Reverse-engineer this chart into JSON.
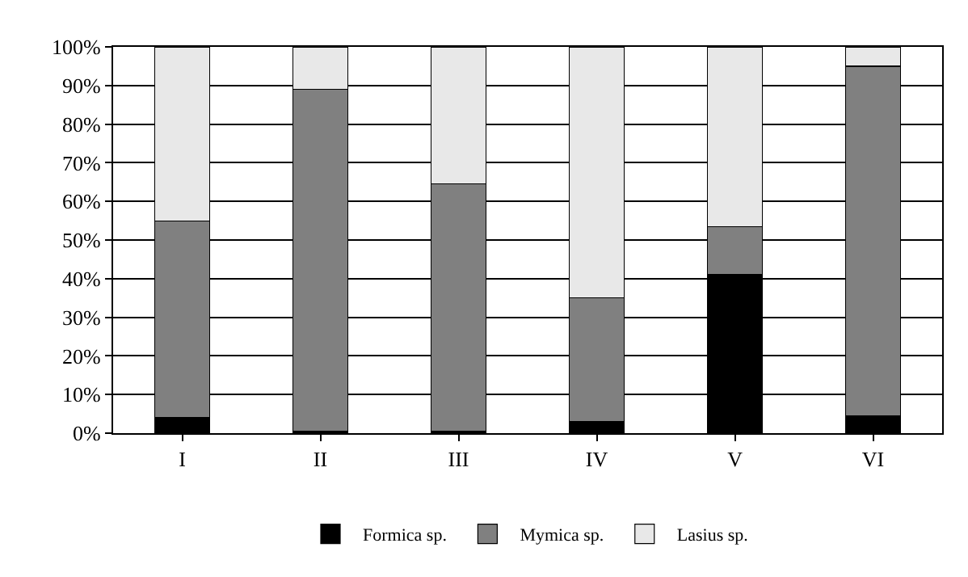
{
  "chart_data": {
    "type": "bar",
    "stacked": true,
    "categories": [
      "I",
      "II",
      "III",
      "IV",
      "V",
      "VI"
    ],
    "series": [
      {
        "name": "Formica sp.",
        "color": "#000000",
        "values": [
          4,
          0.5,
          0.5,
          3,
          41,
          4.5
        ]
      },
      {
        "name": "Mymica sp.",
        "color": "#808080",
        "values": [
          51,
          88.5,
          64,
          32,
          12.5,
          90.5
        ]
      },
      {
        "name": "Lasius sp.",
        "color": "#e8e8e8",
        "values": [
          45,
          11,
          35.5,
          65,
          46.5,
          5
        ]
      }
    ],
    "ylim": [
      0,
      100
    ],
    "yticks": [
      {
        "value": 0,
        "label": "0%"
      },
      {
        "value": 10,
        "label": "10%"
      },
      {
        "value": 20,
        "label": "20%"
      },
      {
        "value": 30,
        "label": "30%"
      },
      {
        "value": 40,
        "label": "40%"
      },
      {
        "value": 50,
        "label": "50%"
      },
      {
        "value": 60,
        "label": "60%"
      },
      {
        "value": 70,
        "label": "70%"
      },
      {
        "value": 80,
        "label": "80%"
      },
      {
        "value": 90,
        "label": "90%"
      },
      {
        "value": 100,
        "label": "100%"
      }
    ],
    "grid": "y",
    "legend": "bottom"
  }
}
